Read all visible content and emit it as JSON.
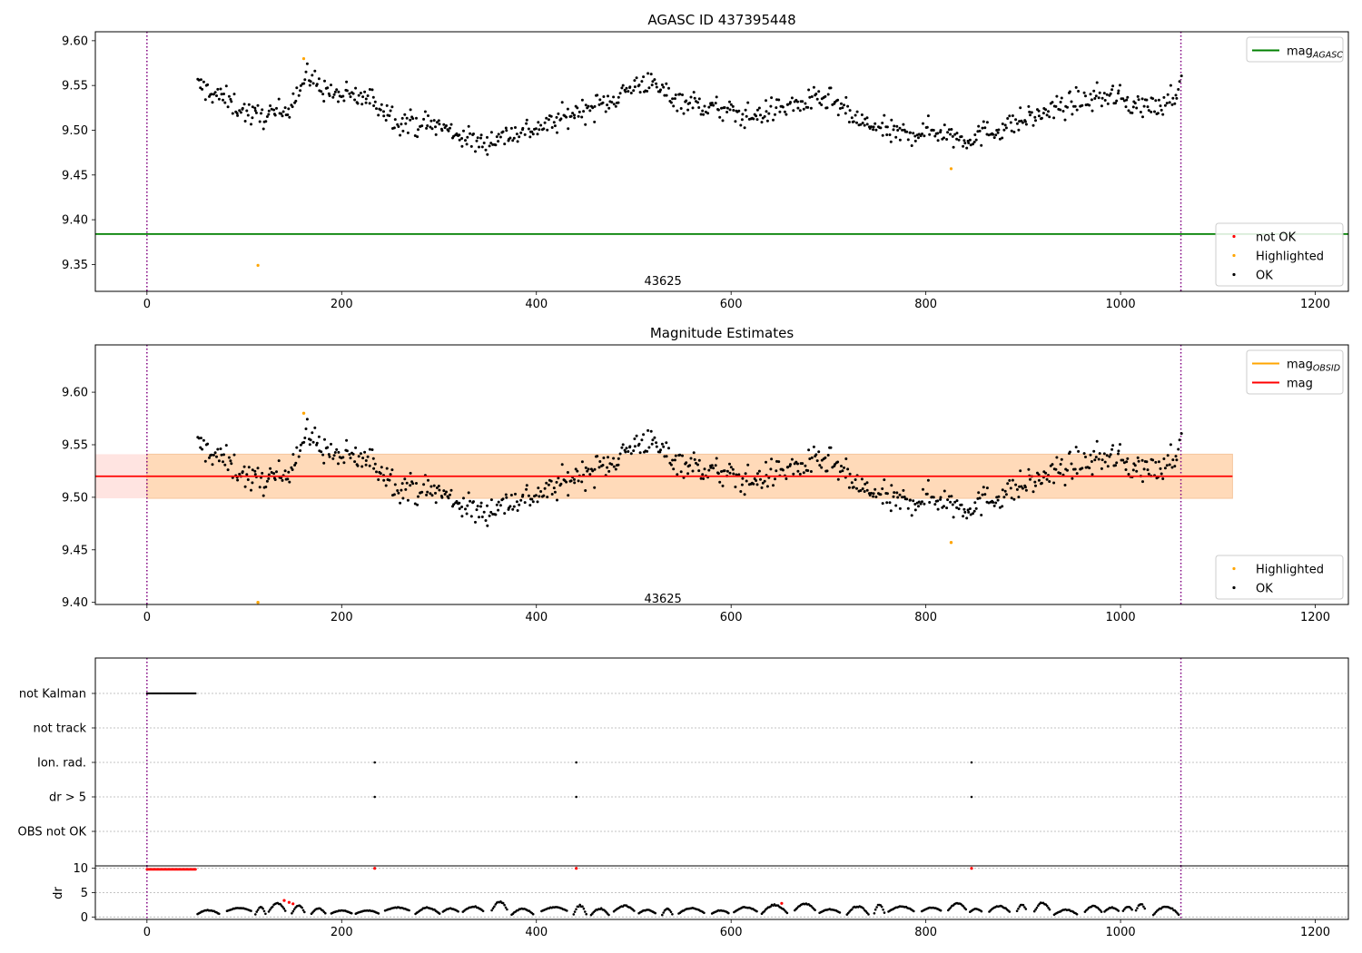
{
  "figure": {
    "title_top": "AGASC ID 437395448",
    "title_middle": "Magnitude Estimates"
  },
  "colors": {
    "ok": "#000000",
    "highlighted": "#ffa500",
    "not_ok": "#ff0000",
    "agasc_line": "#008000",
    "mag_line": "#ff0000",
    "mag_obsid": "#ffa500",
    "band_orange": "#ffdab9",
    "band_pink": "#ffe4e1",
    "boundary": "#800080"
  },
  "chart_data": [
    {
      "type": "scatter",
      "title": "AGASC ID 437395448",
      "xlim": [
        -53,
        1234
      ],
      "ylim": [
        9.32,
        9.61
      ],
      "xticks": [
        0,
        200,
        400,
        600,
        800,
        1000,
        1200
      ],
      "yticks": [
        9.35,
        9.4,
        9.45,
        9.5,
        9.55,
        9.6
      ],
      "ytick_labels": [
        "9.35",
        "9.40",
        "9.45",
        "9.50",
        "9.55",
        "9.60"
      ],
      "hlines": [
        {
          "name": "mag_AGASC",
          "y": 9.384,
          "color": "#008000"
        }
      ],
      "vlines": [
        0,
        1062
      ],
      "annotation": {
        "text": "43625",
        "x": 530,
        "y": 9.327
      },
      "ok_trend": [
        [
          52,
          9.55
        ],
        [
          80,
          9.535
        ],
        [
          110,
          9.515
        ],
        [
          140,
          9.52
        ],
        [
          165,
          9.56
        ],
        [
          190,
          9.54
        ],
        [
          230,
          9.535
        ],
        [
          260,
          9.51
        ],
        [
          300,
          9.505
        ],
        [
          340,
          9.485
        ],
        [
          370,
          9.495
        ],
        [
          410,
          9.505
        ],
        [
          440,
          9.52
        ],
        [
          470,
          9.53
        ],
        [
          510,
          9.555
        ],
        [
          545,
          9.535
        ],
        [
          580,
          9.525
        ],
        [
          620,
          9.515
        ],
        [
          650,
          9.525
        ],
        [
          700,
          9.535
        ],
        [
          730,
          9.51
        ],
        [
          770,
          9.495
        ],
        [
          810,
          9.5
        ],
        [
          840,
          9.49
        ],
        [
          870,
          9.5
        ],
        [
          910,
          9.515
        ],
        [
          950,
          9.53
        ],
        [
          990,
          9.54
        ],
        [
          1010,
          9.53
        ],
        [
          1040,
          9.525
        ],
        [
          1062,
          9.55
        ]
      ],
      "ok_noise": 0.013,
      "ok_count": 780,
      "highlighted": [
        [
          161,
          9.58
        ],
        [
          114,
          9.349
        ],
        [
          826,
          9.457
        ]
      ],
      "legends": [
        {
          "position": "top-right",
          "entries": [
            {
              "label": "mag",
              "sub": "AGASC",
              "kind": "line",
              "color": "#008000"
            }
          ]
        },
        {
          "position": "lower-right",
          "entries": [
            {
              "label": "not OK",
              "kind": "dot",
              "color": "#ff0000"
            },
            {
              "label": "Highlighted",
              "kind": "dot",
              "color": "#ffa500"
            },
            {
              "label": "OK",
              "kind": "dot",
              "color": "#000000"
            }
          ]
        }
      ]
    },
    {
      "type": "scatter",
      "title": "Magnitude Estimates",
      "xlim": [
        -53,
        1234
      ],
      "ylim": [
        9.398,
        9.645
      ],
      "xticks": [
        0,
        200,
        400,
        600,
        800,
        1000,
        1200
      ],
      "yticks": [
        9.4,
        9.45,
        9.5,
        9.55,
        9.6
      ],
      "ytick_labels": [
        "9.40",
        "9.45",
        "9.50",
        "9.55",
        "9.60"
      ],
      "hlines": [
        {
          "name": "mag",
          "y": 9.52,
          "color": "#ff0000"
        }
      ],
      "band": {
        "x": [
          -53,
          1115
        ],
        "y": [
          9.499,
          9.541
        ]
      },
      "vlines": [
        0,
        1062
      ],
      "annotation": {
        "text": "43625",
        "x": 530,
        "y": 9.403
      },
      "highlighted": [
        [
          161,
          9.58
        ],
        [
          826,
          9.457
        ],
        [
          114,
          9.4
        ]
      ],
      "legends": [
        {
          "position": "top-right",
          "entries": [
            {
              "label": "mag",
              "sub": "OBSID",
              "kind": "line",
              "color": "#ffa500"
            },
            {
              "label": "mag",
              "kind": "line",
              "color": "#ff0000"
            }
          ]
        },
        {
          "position": "lower-right",
          "entries": [
            {
              "label": "Highlighted",
              "kind": "dot",
              "color": "#ffa500"
            },
            {
              "label": "OK",
              "kind": "dot",
              "color": "#000000"
            }
          ]
        }
      ]
    },
    {
      "type": "scatter",
      "title": "",
      "xlim": [
        -53,
        1234
      ],
      "xticks": [
        0,
        200,
        400,
        600,
        800,
        1000,
        1200
      ],
      "flag_labels": [
        "not Kalman",
        "not track",
        "Ion. rad.",
        "dr > 5",
        "OBS not OK"
      ],
      "flags": {
        "not Kalman": {
          "from": 0,
          "to": 50
        },
        "Ion. rad.": [
          234,
          441,
          847
        ],
        "dr > 5": [
          234,
          441,
          847
        ]
      },
      "vlines": [
        0,
        1062
      ]
    },
    {
      "type": "scatter",
      "title": "",
      "ylabel": "dr",
      "xlim": [
        -53,
        1234
      ],
      "ylim": [
        -0.5,
        10.5
      ],
      "xticks": [
        0,
        200,
        400,
        600,
        800,
        1000,
        1200
      ],
      "xtick_labels": [
        "0",
        "200",
        "400",
        "600",
        "800",
        "1000",
        "1200"
      ],
      "yticks": [
        0,
        5,
        10
      ],
      "ytick_labels": [
        "0",
        "5",
        "10"
      ],
      "red_points": [
        [
          141,
          3.4
        ],
        [
          146,
          3.0
        ],
        [
          150,
          2.7
        ],
        [
          652,
          2.8
        ],
        [
          234,
          10
        ],
        [
          441,
          10
        ],
        [
          847,
          10
        ]
      ],
      "red_run": {
        "from": 0,
        "to": 50,
        "y": 9.8
      },
      "ok_from": 52,
      "ok_to": 1062,
      "vlines": [
        0,
        1062
      ]
    }
  ]
}
